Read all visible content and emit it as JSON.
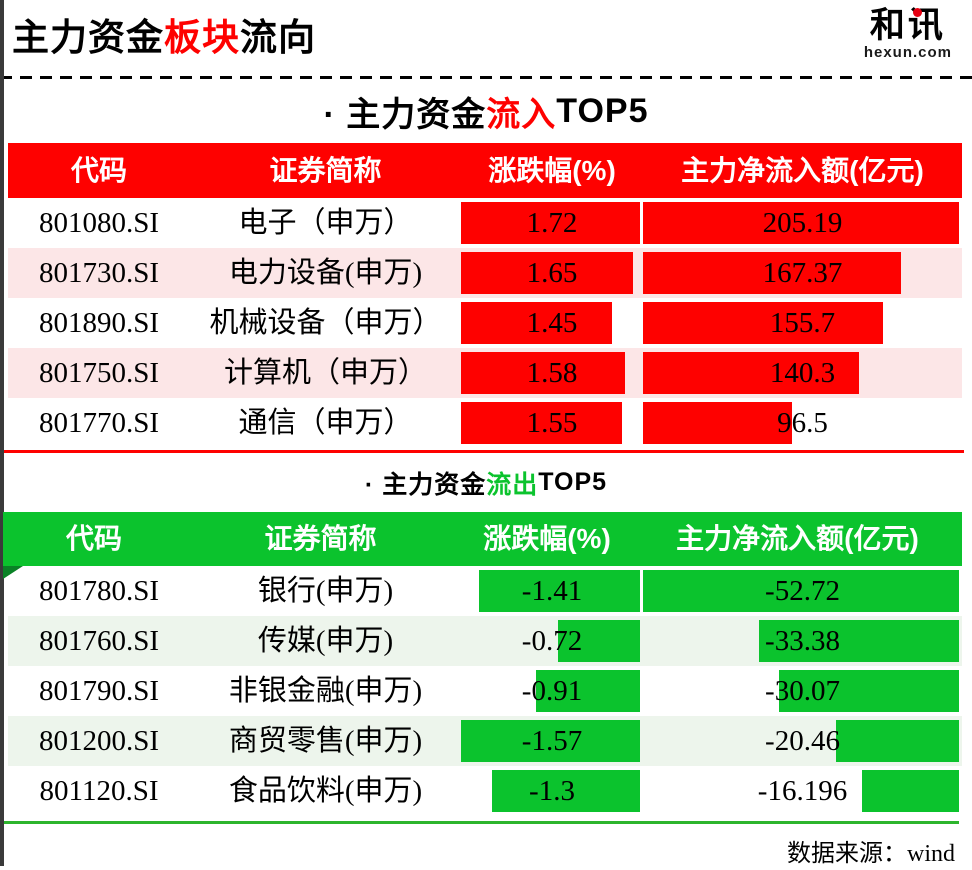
{
  "header": {
    "title_parts": [
      "主力资金",
      "板块",
      "流向"
    ],
    "logo_text": "和讯",
    "logo_subtext": "hexun.com"
  },
  "footer": {
    "text": "数据来源：wind"
  },
  "colors": {
    "red": "#fe0100",
    "pink_row": "#fce6e7",
    "green": "#0bc32d",
    "pale_green_row": "#edf5ec",
    "fold_dark_green": "#0a8226",
    "bottom_line_green": "#2db52d"
  },
  "chart_data": [
    {
      "type": "bar",
      "title": "主力资金流入TOP5",
      "title_parts": {
        "prefix": "· 主力资金",
        "highlight": "流入",
        "suffix": "TOP5"
      },
      "direction": "inflow",
      "columns": [
        "代码",
        "证券简称",
        "涨跌幅(%)",
        "主力净流入额(亿元)"
      ],
      "bar_anchor": "left",
      "bar_color": "#fe0100",
      "rows": [
        {
          "code": "801080.SI",
          "name": "电子（申万）",
          "change_pct": 1.72,
          "net_inflow_100m": 205.19
        },
        {
          "code": "801730.SI",
          "name": "电力设备(申万)",
          "change_pct": 1.65,
          "net_inflow_100m": 167.37
        },
        {
          "code": "801890.SI",
          "name": "机械设备（申万）",
          "change_pct": 1.45,
          "net_inflow_100m": 155.7
        },
        {
          "code": "801750.SI",
          "name": "计算机（申万）",
          "change_pct": 1.58,
          "net_inflow_100m": 140.3
        },
        {
          "code": "801770.SI",
          "name": "通信（申万）",
          "change_pct": 1.55,
          "net_inflow_100m": 96.5
        }
      ]
    },
    {
      "type": "bar",
      "title": "主力资金流出TOP5",
      "title_parts": {
        "prefix": "· 主力资金",
        "highlight": "流出",
        "suffix": "TOP5"
      },
      "direction": "outflow",
      "columns": [
        "代码",
        "证券简称",
        "涨跌幅(%)",
        "主力净流入额(亿元)"
      ],
      "bar_anchor": "right",
      "bar_color": "#0bc32d",
      "rows": [
        {
          "code": "801780.SI",
          "name": "银行(申万)",
          "change_pct": -1.41,
          "net_inflow_100m": -52.72
        },
        {
          "code": "801760.SI",
          "name": "传媒(申万)",
          "change_pct": -0.72,
          "net_inflow_100m": -33.38
        },
        {
          "code": "801790.SI",
          "name": "非银金融(申万)",
          "change_pct": -0.91,
          "net_inflow_100m": -30.07
        },
        {
          "code": "801200.SI",
          "name": "商贸零售(申万)",
          "change_pct": -1.57,
          "net_inflow_100m": -20.46
        },
        {
          "code": "801120.SI",
          "name": "食品饮料(申万)",
          "change_pct": -1.3,
          "net_inflow_100m": -16.196
        }
      ]
    }
  ]
}
